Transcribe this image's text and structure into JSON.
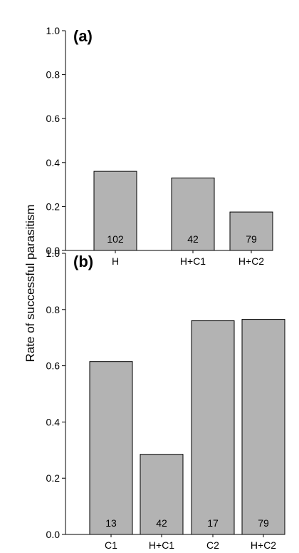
{
  "ylabel": "Rate of successful parasitism",
  "colors": {
    "bar_fill": "#b3b3b3",
    "bar_stroke": "#000000",
    "axis": "#000000"
  },
  "chart_data": [
    {
      "type": "bar",
      "panel_label": "(a)",
      "categories": [
        "H",
        "H+C1",
        "H+C2"
      ],
      "values": [
        0.36,
        0.33,
        0.175
      ],
      "sample_sizes": [
        "102",
        "42",
        "79"
      ],
      "ylim": [
        0,
        1.0
      ],
      "yticks": [
        "0.0",
        "0.2",
        "0.4",
        "0.6",
        "0.8",
        "1.0"
      ],
      "grid": false
    },
    {
      "type": "bar",
      "panel_label": "(b)",
      "categories": [
        "C1",
        "H+C1",
        "C2",
        "H+C2"
      ],
      "values": [
        0.615,
        0.285,
        0.76,
        0.765
      ],
      "sample_sizes": [
        "13",
        "42",
        "17",
        "79"
      ],
      "ylim": [
        0,
        1.0
      ],
      "yticks": [
        "0.0",
        "0.2",
        "0.4",
        "0.6",
        "0.8",
        "1.0"
      ],
      "grid": false
    }
  ]
}
